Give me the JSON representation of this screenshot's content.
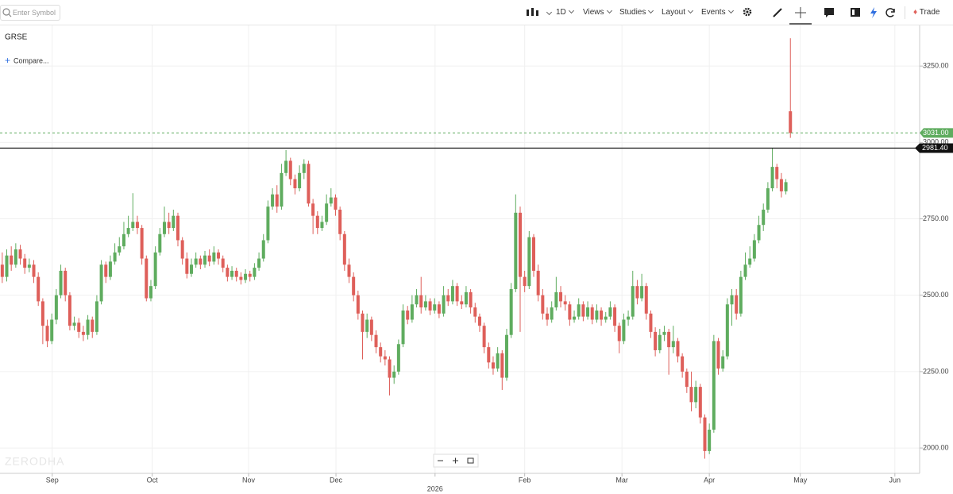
{
  "toolbar": {
    "search_placeholder": "Enter Symbol",
    "interval": "1D",
    "menus": [
      "Views",
      "Studies",
      "Layout",
      "Events"
    ],
    "trade": "Trade"
  },
  "chart_data": {
    "type": "candlestick",
    "title": "GRSE",
    "compare": "Compare...",
    "watermark": "ZERODHA",
    "up_color": "#5fac5f",
    "down_color": "#de5f5a",
    "open": [
      2600,
      2560,
      2630,
      2600,
      2650,
      2620,
      2590,
      2600,
      2560,
      2480,
      2400,
      2350,
      2420,
      2500,
      2580,
      2500,
      2400,
      2410,
      2380,
      2370,
      2420,
      2380,
      2480,
      2600,
      2560,
      2610,
      2640,
      2660,
      2700,
      2720,
      2740,
      2720,
      2620,
      2490,
      2530,
      2640,
      2700,
      2740,
      2720,
      2760,
      2680,
      2620,
      2570,
      2600,
      2620,
      2600,
      2630,
      2610,
      2640,
      2620,
      2590,
      2560,
      2580,
      2560,
      2550,
      2570,
      2560,
      2590,
      2620,
      2680,
      2790,
      2830,
      2790,
      2900,
      2940,
      2880,
      2850,
      2900,
      2930,
      2800,
      2760,
      2720,
      2740,
      2800,
      2820,
      2780,
      2700,
      2600,
      2560,
      2500,
      2440,
      2380,
      2420,
      2370,
      2330,
      2300,
      2290,
      2230,
      2250,
      2340,
      2450,
      2420,
      2470,
      2500,
      2460,
      2480,
      2450,
      2470,
      2440,
      2500,
      2480,
      2530,
      2480,
      2470,
      2510,
      2460,
      2430,
      2400,
      2330,
      2280,
      2260,
      2310,
      2230,
      2370,
      2520,
      2770,
      2560,
      2530,
      2690,
      2580,
      2500,
      2440,
      2420,
      2460,
      2510,
      2480,
      2470,
      2420,
      2430,
      2470,
      2430,
      2460,
      2420,
      2450,
      2420,
      2430,
      2460,
      2400,
      2350,
      2420,
      2430,
      2530,
      2490,
      2530,
      2440,
      2380,
      2320,
      2370,
      2380,
      2330,
      2350,
      2300,
      2250,
      2200,
      2150,
      2200,
      2100,
      1990,
      2060,
      2350,
      2260,
      2300,
      2470,
      2500,
      2440,
      2560,
      2600,
      2620,
      2680,
      2730,
      2780,
      2850,
      2920,
      2880,
      2840,
      3102
    ],
    "high": [
      2640,
      2650,
      2660,
      2670,
      2665,
      2635,
      2620,
      2615,
      2575,
      2490,
      2420,
      2440,
      2520,
      2600,
      2590,
      2510,
      2430,
      2425,
      2400,
      2435,
      2430,
      2500,
      2615,
      2610,
      2630,
      2670,
      2690,
      2740,
      2760,
      2834,
      2760,
      2730,
      2630,
      2550,
      2660,
      2720,
      2790,
      2770,
      2780,
      2770,
      2690,
      2640,
      2620,
      2640,
      2630,
      2645,
      2650,
      2660,
      2650,
      2630,
      2600,
      2595,
      2590,
      2575,
      2585,
      2580,
      2605,
      2640,
      2700,
      2810,
      2850,
      2860,
      2930,
      2975,
      2950,
      2895,
      2925,
      2945,
      2940,
      2815,
      2775,
      2760,
      2830,
      2850,
      2830,
      2790,
      2710,
      2620,
      2575,
      2515,
      2450,
      2440,
      2430,
      2385,
      2345,
      2320,
      2300,
      2270,
      2355,
      2470,
      2465,
      2500,
      2520,
      2560,
      2500,
      2490,
      2490,
      2480,
      2530,
      2520,
      2550,
      2540,
      2500,
      2530,
      2520,
      2475,
      2440,
      2410,
      2345,
      2300,
      2330,
      2320,
      2390,
      2540,
      2830,
      2790,
      2580,
      2710,
      2700,
      2600,
      2520,
      2460,
      2480,
      2560,
      2530,
      2500,
      2480,
      2450,
      2490,
      2480,
      2480,
      2470,
      2470,
      2460,
      2445,
      2480,
      2470,
      2410,
      2440,
      2450,
      2580,
      2550,
      2570,
      2540,
      2450,
      2395,
      2390,
      2400,
      2390,
      2400,
      2360,
      2310,
      2260,
      2250,
      2220,
      2210,
      2110,
      2080,
      2370,
      2360,
      2320,
      2490,
      2520,
      2520,
      2580,
      2640,
      2660,
      2700,
      2760,
      2800,
      2870,
      2980,
      2930,
      2900,
      2880,
      3341
    ],
    "low": [
      2540,
      2545,
      2580,
      2590,
      2600,
      2570,
      2575,
      2540,
      2465,
      2340,
      2330,
      2340,
      2405,
      2490,
      2480,
      2385,
      2385,
      2360,
      2350,
      2355,
      2360,
      2370,
      2470,
      2540,
      2550,
      2600,
      2630,
      2650,
      2690,
      2710,
      2700,
      2600,
      2480,
      2480,
      2520,
      2630,
      2690,
      2700,
      2710,
      2660,
      2600,
      2555,
      2560,
      2590,
      2585,
      2590,
      2595,
      2600,
      2600,
      2575,
      2545,
      2550,
      2545,
      2535,
      2540,
      2545,
      2550,
      2580,
      2610,
      2670,
      2780,
      2770,
      2780,
      2890,
      2860,
      2830,
      2840,
      2880,
      2790,
      2700,
      2700,
      2710,
      2730,
      2790,
      2760,
      2680,
      2580,
      2540,
      2480,
      2420,
      2290,
      2360,
      2350,
      2310,
      2280,
      2270,
      2172,
      2210,
      2240,
      2330,
      2405,
      2410,
      2460,
      2440,
      2450,
      2435,
      2440,
      2425,
      2430,
      2465,
      2470,
      2465,
      2455,
      2460,
      2440,
      2410,
      2380,
      2310,
      2260,
      2240,
      2250,
      2190,
      2220,
      2360,
      2510,
      2380,
      2510,
      2520,
      2560,
      2480,
      2420,
      2400,
      2410,
      2450,
      2460,
      2450,
      2400,
      2410,
      2420,
      2415,
      2420,
      2405,
      2410,
      2400,
      2410,
      2420,
      2380,
      2310,
      2340,
      2400,
      2420,
      2470,
      2480,
      2420,
      2360,
      2300,
      2310,
      2350,
      2240,
      2310,
      2280,
      2230,
      2180,
      2120,
      2130,
      2080,
      1965,
      1980,
      2050,
      2240,
      2250,
      2290,
      2400,
      2420,
      2430,
      2550,
      2590,
      2610,
      2670,
      2710,
      2770,
      2840,
      2850,
      2820,
      2830,
      3015
    ],
    "close": [
      2560,
      2630,
      2600,
      2650,
      2620,
      2590,
      2600,
      2560,
      2480,
      2400,
      2350,
      2420,
      2500,
      2580,
      2500,
      2400,
      2410,
      2380,
      2370,
      2420,
      2380,
      2480,
      2600,
      2560,
      2610,
      2640,
      2660,
      2700,
      2720,
      2740,
      2720,
      2620,
      2490,
      2530,
      2640,
      2700,
      2740,
      2720,
      2760,
      2680,
      2620,
      2570,
      2600,
      2620,
      2600,
      2630,
      2610,
      2640,
      2620,
      2590,
      2560,
      2580,
      2560,
      2550,
      2570,
      2560,
      2590,
      2620,
      2680,
      2790,
      2830,
      2790,
      2900,
      2940,
      2880,
      2850,
      2900,
      2930,
      2800,
      2760,
      2720,
      2740,
      2800,
      2820,
      2780,
      2700,
      2600,
      2560,
      2500,
      2440,
      2380,
      2420,
      2370,
      2330,
      2300,
      2290,
      2230,
      2250,
      2340,
      2450,
      2420,
      2470,
      2500,
      2460,
      2480,
      2450,
      2470,
      2440,
      2500,
      2480,
      2530,
      2480,
      2470,
      2510,
      2460,
      2430,
      2400,
      2330,
      2280,
      2260,
      2310,
      2230,
      2370,
      2520,
      2770,
      2560,
      2530,
      2690,
      2580,
      2500,
      2440,
      2420,
      2460,
      2510,
      2480,
      2470,
      2420,
      2430,
      2470,
      2430,
      2460,
      2420,
      2450,
      2420,
      2430,
      2460,
      2400,
      2350,
      2420,
      2430,
      2530,
      2490,
      2530,
      2440,
      2380,
      2320,
      2370,
      2380,
      2330,
      2350,
      2300,
      2250,
      2200,
      2150,
      2200,
      2100,
      1990,
      2060,
      2350,
      2260,
      2300,
      2470,
      2500,
      2440,
      2560,
      2600,
      2620,
      2680,
      2730,
      2780,
      2850,
      2920,
      2880,
      2840,
      2870,
      3031
    ],
    "last_price": {
      "value": 3031,
      "label": "3031.00"
    },
    "hline": {
      "value": 2981.4,
      "label": "2981.40"
    },
    "xlim": [
      -0.5,
      203.7
    ],
    "xticks": [
      {
        "value": 11.1,
        "label": "Sep"
      },
      {
        "value": 33.3,
        "label": "Oct"
      },
      {
        "value": 54.7,
        "label": "Nov"
      },
      {
        "value": 74.1,
        "label": "Dec"
      },
      {
        "value": 96.1,
        "label": "2026"
      },
      {
        "value": 116.0,
        "label": "Feb"
      },
      {
        "value": 137.6,
        "label": "Mar"
      },
      {
        "value": 157.0,
        "label": "Apr"
      },
      {
        "value": 177.2,
        "label": "May"
      },
      {
        "value": 198.2,
        "label": "Jun"
      }
    ],
    "ylim": [
      1917,
      3383
    ],
    "yticks": [
      {
        "value": 2000,
        "label": "2000.00"
      },
      {
        "value": 2250,
        "label": "2250.00"
      },
      {
        "value": 2500,
        "label": "2500.00"
      },
      {
        "value": 2750,
        "label": "2750.00"
      },
      {
        "value": 3000,
        "label": "3000.00"
      },
      {
        "value": 3250,
        "label": "3250.00"
      }
    ],
    "grid": true
  }
}
